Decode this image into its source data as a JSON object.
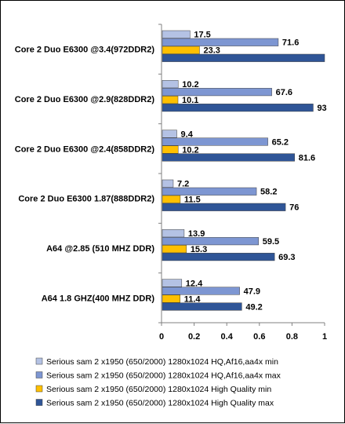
{
  "chart_data": {
    "type": "bar",
    "orientation": "horizontal",
    "title": "",
    "xlabel": "",
    "ylabel": "",
    "xlim": [
      0,
      1
    ],
    "ticks": [
      "0",
      "0.2",
      "0.4",
      "0.6",
      "0.8",
      "1"
    ],
    "grid": false,
    "legend_position": "bottom",
    "categories": [
      "Core 2 Duo E6300 @3.4(972DDR2)",
      "Core 2 Duo E6300 @2.9(828DDR2)",
      "Core 2 Duo E6300 @2.4(858DDR2)",
      "Core 2 Duo E6300 1.87(888DDR2)",
      "A64 @2.85 (510 MHZ DDR)",
      "A64 1.8 GHZ(400 MHZ DDR)"
    ],
    "series": [
      {
        "name": "Serious sam 2 x1950 (650/2000) 1280x1024 HQ,Af16,aa4x min",
        "color": "#b4c2e4",
        "bar_fraction": [
          0.175,
          0.102,
          0.094,
          0.072,
          0.139,
          0.124
        ],
        "labels": [
          "17.5",
          "10.2",
          "9.4",
          "7.2",
          "13.9",
          "12.4"
        ]
      },
      {
        "name": "Serious sam 2 x1950 (650/2000) 1280x1024 HQ,Af16,aa4x max",
        "color": "#7d96d2",
        "bar_fraction": [
          0.716,
          0.676,
          0.652,
          0.582,
          0.595,
          0.479
        ],
        "labels": [
          "71.6",
          "67.6",
          "65.2",
          "58.2",
          "59.5",
          "47.9"
        ]
      },
      {
        "name": "Serious sam 2 x1950 (650/2000) 1280x1024 High Quality min",
        "color": "#ffc000",
        "bar_fraction": [
          0.233,
          0.101,
          0.102,
          0.115,
          0.153,
          0.114
        ],
        "labels": [
          "23.3",
          "10.1",
          "10.2",
          "11.5",
          "15.3",
          "11.4"
        ]
      },
      {
        "name": "Serious sam 2 x1950 (650/2000) 1280x1024 High Quality max",
        "color": "#2f5597",
        "bar_fraction": [
          1.0,
          0.93,
          0.816,
          0.76,
          0.693,
          0.492
        ],
        "labels": [
          "",
          "93",
          "81.6",
          "76",
          "69.3",
          "49.2"
        ]
      }
    ]
  }
}
